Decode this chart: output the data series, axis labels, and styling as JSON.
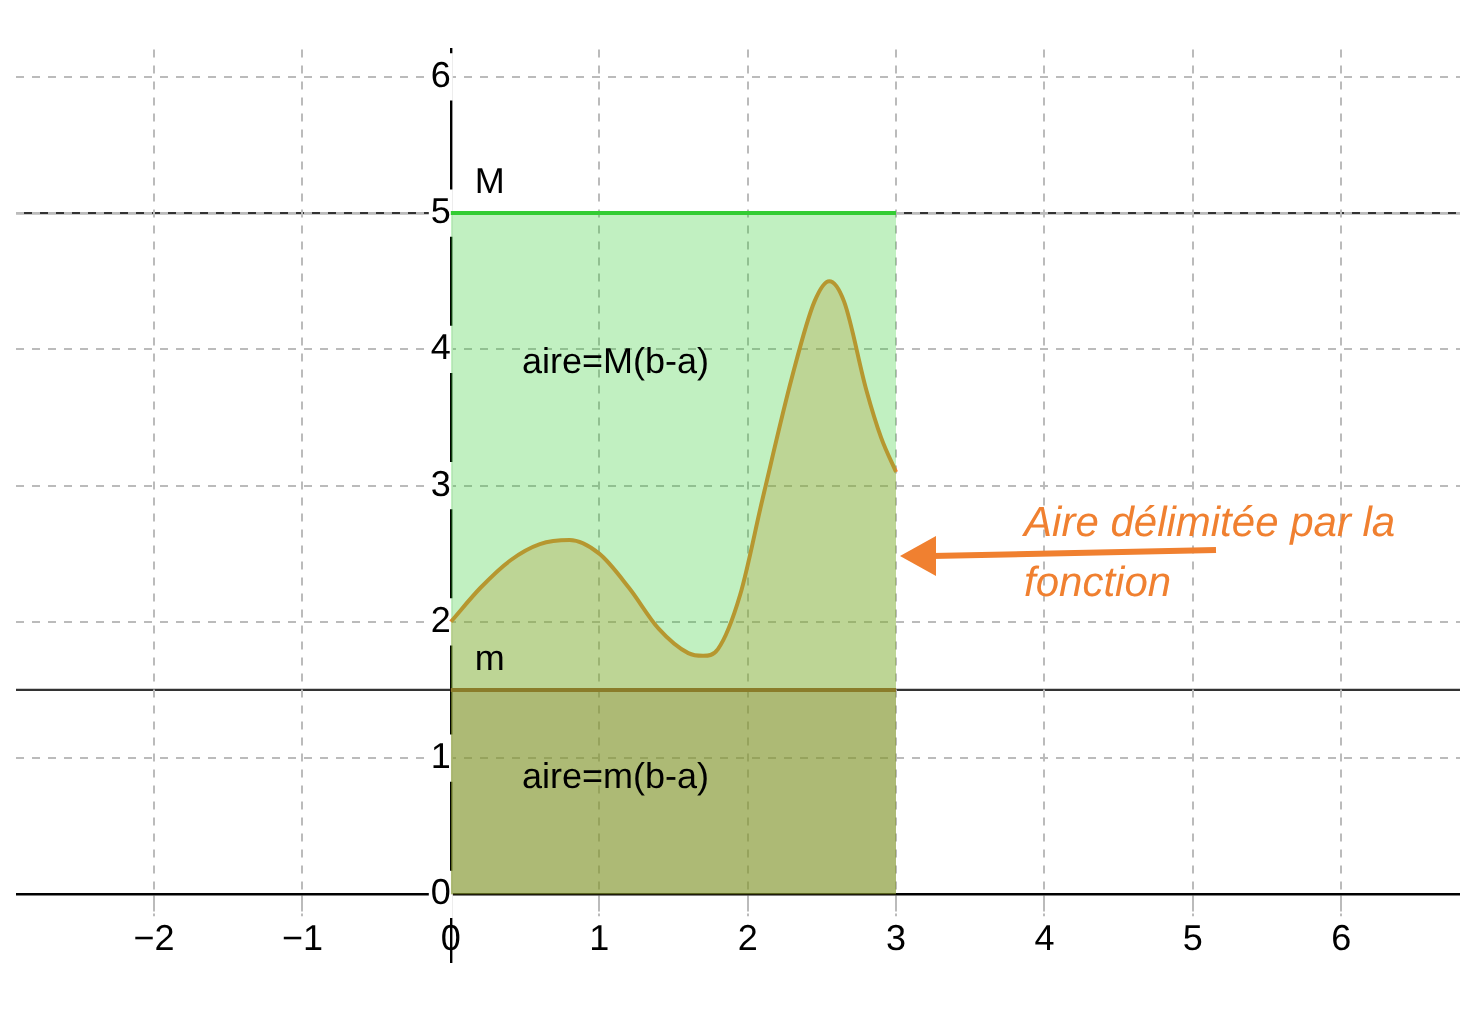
{
  "chart_data": {
    "type": "line",
    "xlim": [
      -2.93,
      6.8
    ],
    "ylim": [
      -0.5,
      6.2
    ],
    "xticks": [
      {
        "value": -2,
        "label": "−2"
      },
      {
        "value": -1,
        "label": "−1"
      },
      0,
      1,
      2,
      3,
      4,
      5,
      6
    ],
    "yticks": [
      0,
      1,
      2,
      3,
      4,
      5,
      6
    ],
    "grid": true,
    "line_style": "dashed",
    "series": [
      {
        "type": "area",
        "color": "#33cc33",
        "x": [
          0,
          3
        ],
        "values": [
          5,
          5
        ]
      },
      {
        "type": "area",
        "color": "#b05a28",
        "x": [
          0,
          3
        ],
        "values": [
          1.5,
          1.5
        ]
      },
      {
        "type": "area",
        "color": "#f08030",
        "x": [
          0,
          0.2,
          0.4,
          0.6,
          0.8,
          1.0,
          1.2,
          1.4,
          1.6,
          1.7,
          1.8,
          1.95,
          2.1,
          2.3,
          2.45,
          2.55,
          2.65,
          2.8,
          2.9,
          3
        ],
        "values": [
          2,
          2.25,
          2.45,
          2.57,
          2.6,
          2.5,
          2.25,
          1.95,
          1.77,
          1.75,
          1.8,
          2.2,
          2.9,
          3.8,
          4.35,
          4.5,
          4.35,
          3.7,
          3.35,
          3.1
        ]
      }
    ],
    "ref_lines": [
      {
        "axis": "y",
        "value": 5,
        "label": "M",
        "color": "#333333"
      },
      {
        "axis": "y",
        "value": 1.5,
        "label": "m",
        "color": "#333333"
      }
    ],
    "annotations": [
      "aire=M(b-a)",
      "aire=m(b-a)",
      "Aire délimitée par la fonction"
    ]
  }
}
